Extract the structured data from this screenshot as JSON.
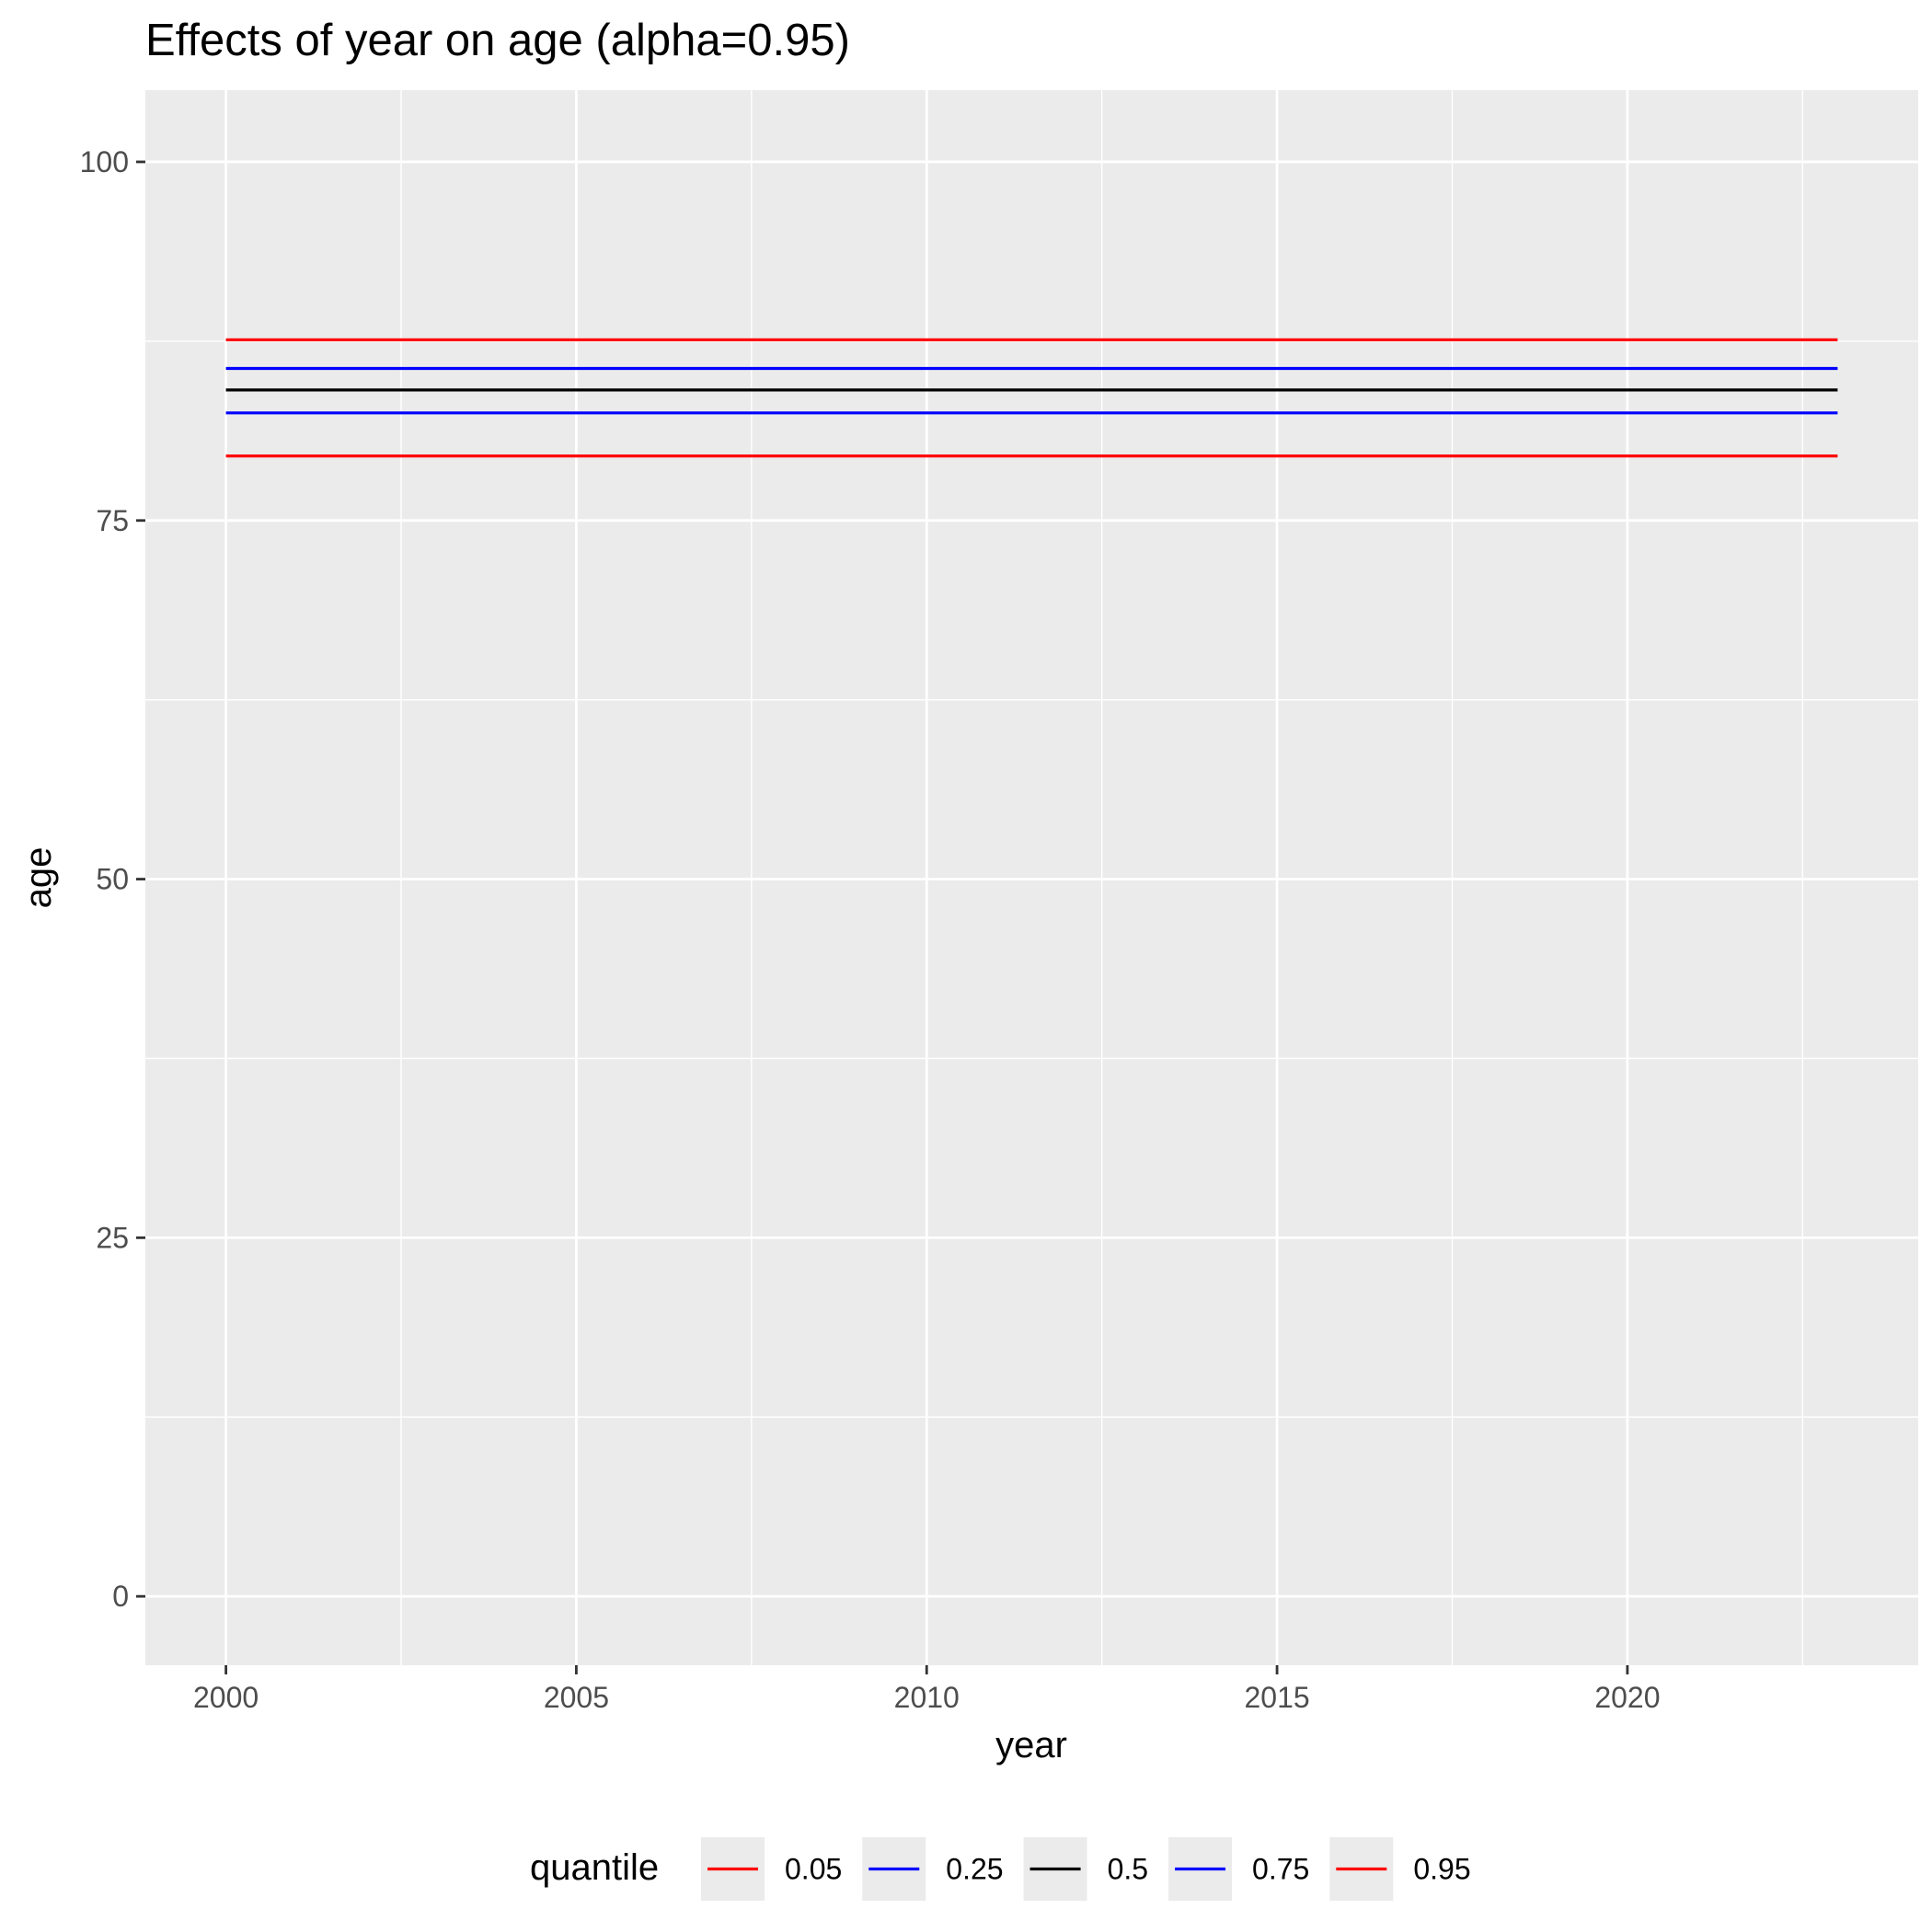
{
  "chart_data": {
    "type": "line",
    "title": "Effects of year on age (alpha=0.95)",
    "xlabel": "year",
    "ylabel": "age",
    "x": [
      2000,
      2023
    ],
    "xlim": [
      1998.85,
      2024.15
    ],
    "ylim": [
      -4.8,
      105
    ],
    "x_ticks": [
      "2000",
      "2005",
      "2010",
      "2015",
      "2020"
    ],
    "y_ticks": [
      "0",
      "25",
      "50",
      "75",
      "100"
    ],
    "grid": true,
    "legend_position": "bottom",
    "legend_title": "quantile",
    "series": [
      {
        "name": "0.05",
        "color": "#FF0000",
        "values": [
          79.5,
          79.5
        ]
      },
      {
        "name": "0.25",
        "color": "#0000FF",
        "values": [
          82.5,
          82.5
        ]
      },
      {
        "name": "0.5",
        "color": "#000000",
        "values": [
          84.1,
          84.1
        ]
      },
      {
        "name": "0.75",
        "color": "#0000FF",
        "values": [
          85.6,
          85.6
        ]
      },
      {
        "name": "0.95",
        "color": "#FF0000",
        "values": [
          87.6,
          87.6
        ]
      }
    ],
    "panel_color": "#EBEBEB",
    "grid_color": "#FFFFFF"
  }
}
